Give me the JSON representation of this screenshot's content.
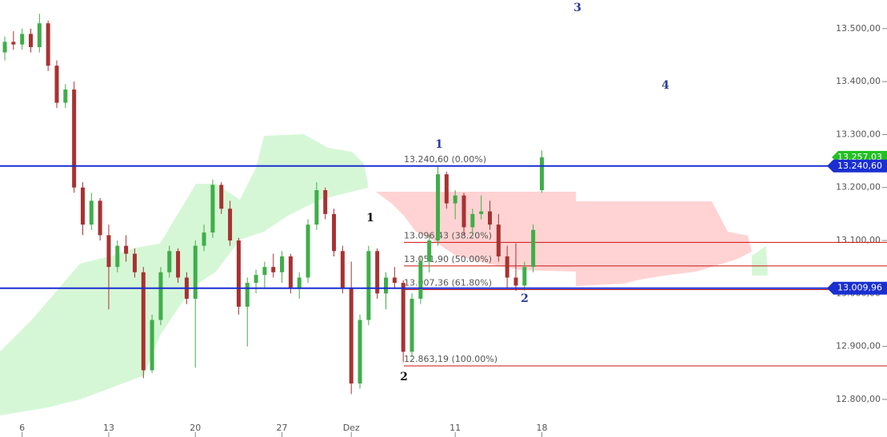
{
  "chart_data": {
    "type": "candlestick",
    "categories": [
      null,
      null,
      "6",
      null,
      null,
      null,
      null,
      null,
      null,
      null,
      null,
      null,
      "13",
      null,
      null,
      null,
      null,
      null,
      null,
      null,
      null,
      null,
      "20",
      null,
      null,
      null,
      null,
      null,
      null,
      null,
      null,
      null,
      "27",
      null,
      null,
      null,
      null,
      null,
      null,
      null,
      "Dez",
      null,
      null,
      null,
      null,
      null,
      null,
      null,
      null,
      null,
      null,
      null,
      "11",
      null,
      null,
      null,
      null,
      null,
      null,
      null,
      null,
      null,
      "18"
    ],
    "open": [
      13455,
      13475,
      13470,
      13490,
      13465,
      13510,
      13430,
      13360,
      13385,
      13200,
      13130,
      13175,
      13110,
      13050,
      13090,
      13075,
      13040,
      12855,
      12950,
      13040,
      13080,
      13030,
      12990,
      13090,
      13115,
      13205,
      13160,
      13100,
      12975,
      13020,
      13035,
      13050,
      13040,
      13070,
      13010,
      13030,
      13130,
      13195,
      13150,
      13080,
      13010,
      12830,
      12950,
      13080,
      13000,
      13030,
      13020,
      12890,
      12990,
      13060,
      13100,
      13225,
      13170,
      13185,
      13125,
      13150,
      13155,
      13130,
      13070,
      13030,
      13015,
      13050,
      13195
    ],
    "high": [
      13485,
      13495,
      13500,
      13500,
      13528,
      13515,
      13440,
      13395,
      13400,
      13210,
      13190,
      13180,
      13130,
      13100,
      13110,
      13085,
      13050,
      12960,
      13050,
      13090,
      13085,
      13040,
      13100,
      13130,
      13215,
      13210,
      13175,
      13105,
      13030,
      13045,
      13060,
      13075,
      13080,
      13075,
      13040,
      13140,
      13210,
      13200,
      13160,
      13090,
      13060,
      12960,
      13090,
      13085,
      13040,
      13050,
      13025,
      13000,
      13070,
      13110,
      13240,
      13230,
      13195,
      13190,
      13160,
      13185,
      13175,
      13150,
      13090,
      13095,
      13060,
      13130,
      13270
    ],
    "low": [
      13440,
      13460,
      13460,
      13455,
      13455,
      13420,
      13350,
      13350,
      13190,
      13110,
      13120,
      13100,
      12970,
      13040,
      13060,
      13030,
      12840,
      12850,
      12940,
      13030,
      13020,
      12980,
      12860,
      13080,
      13105,
      13150,
      13090,
      12960,
      12900,
      13000,
      13010,
      13030,
      13020,
      13000,
      12990,
      13020,
      13120,
      13140,
      13070,
      13000,
      12810,
      12820,
      12940,
      12990,
      12970,
      13010,
      12870,
      12880,
      12980,
      13040,
      13090,
      13160,
      13140,
      13110,
      13110,
      13140,
      13120,
      13060,
      13010,
      13005,
      13005,
      13040,
      13190
    ],
    "close": [
      13475,
      13470,
      13490,
      13465,
      13510,
      13430,
      13360,
      13385,
      13200,
      13130,
      13175,
      13110,
      13050,
      13090,
      13075,
      13040,
      12855,
      12950,
      13040,
      13080,
      13030,
      12990,
      13090,
      13115,
      13205,
      13160,
      13100,
      12975,
      13020,
      13035,
      13050,
      13040,
      13070,
      13010,
      13030,
      13130,
      13195,
      13150,
      13080,
      13010,
      12830,
      12950,
      13080,
      13000,
      13030,
      13020,
      12890,
      12990,
      13060,
      13100,
      13225,
      13170,
      13185,
      13125,
      13150,
      13155,
      13130,
      13070,
      13030,
      13015,
      13050,
      13120,
      13257.03
    ],
    "up_color": "#3fae49",
    "down_color": "#a83232",
    "ylim": [
      12729,
      13554
    ],
    "yticks": [
      {
        "value": 13500,
        "label": "13.500,00"
      },
      {
        "value": 13400,
        "label": "13.400,00"
      },
      {
        "value": 13300,
        "label": "13.300,00"
      },
      {
        "value": 13200,
        "label": "13.200,00"
      },
      {
        "value": 13100,
        "label": "13.100,00"
      },
      {
        "value": 13000,
        "label": "13.000,00"
      },
      {
        "value": 12900,
        "label": "12.900,00"
      },
      {
        "value": 12800,
        "label": "12.800,00"
      }
    ],
    "last_price": {
      "value": 13257.03,
      "label": "13.257,03",
      "color": "#22c022"
    },
    "hlines": [
      {
        "value": 13240.6,
        "label": "13.240,60",
        "color": "#1a2fd0"
      },
      {
        "value": 13009.96,
        "label": "13.009,96",
        "color": "#1a2fd0"
      }
    ],
    "fib_levels": [
      {
        "value": 13240.6,
        "label": "13.240,60 (0.00%)"
      },
      {
        "value": 13096.43,
        "label": "13.096,43 (38.20%)"
      },
      {
        "value": 13051.9,
        "label": "13.051,90 (50.00%)"
      },
      {
        "value": 13007.36,
        "label": "13.007,36 (61.80%)"
      },
      {
        "value": 12863.19,
        "label": "12.863,19 (100.00%)"
      }
    ],
    "fib_color": "#cc1111",
    "annotations": [
      {
        "text": "1",
        "color": "#111111"
      },
      {
        "text": "2",
        "color": "#111111"
      },
      {
        "text": "1",
        "color": "#2b3a9a"
      },
      {
        "text": "2",
        "color": "#2b3a9a"
      },
      {
        "text": "3",
        "color": "#2b3a9a"
      },
      {
        "text": "4",
        "color": "#2b3a9a"
      }
    ]
  }
}
